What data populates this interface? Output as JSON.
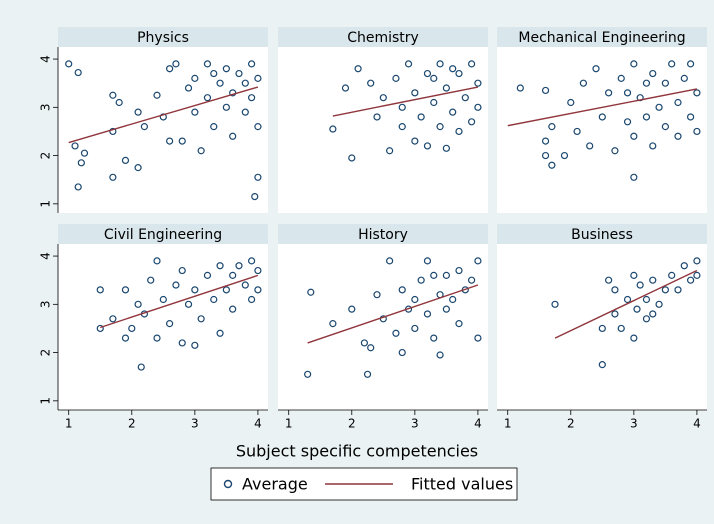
{
  "chart_data": {
    "type": "scatter",
    "xlabel": "Subject specific competencies",
    "xlim": [
      0.83,
      4.16
    ],
    "ylim": [
      0.81,
      4.25
    ],
    "xticks": [
      1,
      2,
      3,
      4
    ],
    "yticks": [
      1,
      2,
      3,
      4
    ],
    "series": [
      {
        "name": "Average",
        "color": "#1a476f"
      },
      {
        "name": "Fitted values",
        "color": "#90353b"
      }
    ],
    "panels": [
      {
        "title": "Physics",
        "series": [
          {
            "x": [
              1,
              1.15,
              1.1,
              1.25,
              1.2,
              1.15,
              1.7,
              1.8,
              1.7,
              1.7,
              1.9,
              2.1,
              2.1,
              2.2,
              2.4,
              2.5,
              2.6,
              2.7,
              2.8,
              2.9,
              3,
              3,
              3.1,
              3.2,
              3.2,
              3.3,
              3.4,
              3.5,
              3.5,
              3.6,
              3.6,
              3.7,
              3.8,
              3.8,
              3.9,
              3.9,
              4,
              4,
              3.95,
              4,
              2.6,
              3.3
            ],
            "y": [
              3.9,
              3.72,
              2.2,
              2.05,
              1.85,
              1.35,
              3.25,
              3.1,
              2.5,
              1.55,
              1.9,
              1.75,
              2.9,
              2.6,
              3.25,
              2.8,
              3.8,
              3.9,
              2.3,
              3.4,
              2.9,
              3.6,
              2.1,
              3.2,
              3.9,
              2.6,
              3.5,
              3.0,
              3.8,
              2.4,
              3.3,
              3.7,
              2.9,
              3.5,
              3.9,
              3.2,
              3.6,
              1.55,
              1.15,
              2.6,
              2.3,
              3.7
            ]
          },
          {
            "x": [
              1,
              4
            ],
            "y": [
              2.27,
              3.42
            ]
          }
        ]
      },
      {
        "title": "Chemistry",
        "series": [
          {
            "x": [
              1.7,
              2,
              1.9,
              2.1,
              2.3,
              2.4,
              2.5,
              2.6,
              2.7,
              2.8,
              2.9,
              3,
              3,
              3.1,
              3.2,
              3.2,
              3.3,
              3.4,
              3.4,
              3.5,
              3.5,
              3.6,
              3.7,
              3.7,
              3.8,
              3.9,
              3.9,
              4,
              4,
              3.3,
              2.8,
              3.6
            ],
            "y": [
              2.55,
              1.95,
              3.4,
              3.8,
              3.5,
              2.8,
              3.2,
              2.1,
              3.6,
              2.6,
              3.9,
              2.3,
              3.3,
              2.8,
              3.7,
              2.2,
              3.1,
              2.6,
              3.9,
              2.15,
              3.4,
              2.9,
              3.7,
              2.5,
              3.2,
              3.9,
              2.7,
              3.5,
              3.0,
              3.6,
              3.0,
              3.8
            ]
          },
          {
            "x": [
              1.7,
              4
            ],
            "y": [
              2.82,
              3.42
            ]
          }
        ]
      },
      {
        "title": "Mechanical Engineering",
        "series": [
          {
            "x": [
              1.2,
              1.6,
              1.6,
              1.6,
              1.7,
              1.7,
              1.9,
              2,
              2.1,
              2.2,
              2.3,
              2.4,
              2.5,
              2.6,
              2.7,
              2.8,
              2.9,
              3,
              3,
              3,
              3.1,
              3.2,
              3.3,
              3.3,
              3.4,
              3.5,
              3.5,
              3.6,
              3.7,
              3.7,
              3.8,
              3.9,
              3.9,
              4,
              4,
              3.2,
              2.9
            ],
            "y": [
              3.4,
              3.35,
              2.3,
              2.0,
              1.8,
              2.6,
              2.0,
              3.1,
              2.5,
              3.5,
              2.2,
              3.8,
              2.8,
              3.3,
              2.1,
              3.6,
              2.7,
              3.9,
              1.55,
              2.4,
              3.2,
              2.8,
              3.7,
              2.2,
              3.0,
              3.5,
              2.6,
              3.9,
              3.1,
              2.4,
              3.6,
              2.8,
              3.9,
              3.3,
              2.5,
              3.5,
              3.3
            ]
          },
          {
            "x": [
              1,
              4
            ],
            "y": [
              2.62,
              3.38
            ]
          }
        ]
      },
      {
        "title": "Civil Engineering",
        "series": [
          {
            "x": [
              1.5,
              1.5,
              1.7,
              1.9,
              1.9,
              2,
              2.1,
              2.15,
              2.2,
              2.3,
              2.4,
              2.5,
              2.6,
              2.7,
              2.8,
              2.8,
              2.9,
              3,
              3,
              3.1,
              3.2,
              3.3,
              3.4,
              3.4,
              3.5,
              3.6,
              3.6,
              3.7,
              3.8,
              3.9,
              3.9,
              4,
              4,
              2.4
            ],
            "y": [
              3.3,
              2.5,
              2.7,
              2.3,
              3.3,
              2.5,
              3.0,
              1.7,
              2.8,
              3.5,
              2.3,
              3.1,
              2.6,
              3.4,
              2.2,
              3.7,
              3.0,
              2.15,
              3.3,
              2.7,
              3.6,
              3.1,
              2.4,
              3.8,
              3.3,
              3.6,
              2.9,
              3.8,
              3.4,
              3.9,
              3.1,
              3.7,
              3.3,
              3.9
            ]
          },
          {
            "x": [
              1.5,
              4
            ],
            "y": [
              2.52,
              3.6
            ]
          }
        ]
      },
      {
        "title": "History",
        "series": [
          {
            "x": [
              1.3,
              1.35,
              1.7,
              2,
              2.2,
              2.25,
              2.3,
              2.4,
              2.5,
              2.6,
              2.7,
              2.8,
              2.8,
              2.9,
              3,
              3,
              3.1,
              3.2,
              3.2,
              3.3,
              3.4,
              3.4,
              3.5,
              3.5,
              3.6,
              3.7,
              3.7,
              3.8,
              3.9,
              4,
              4,
              3.3
            ],
            "y": [
              1.55,
              3.25,
              2.6,
              2.9,
              2.2,
              1.55,
              2.1,
              3.2,
              2.7,
              3.9,
              2.4,
              2.0,
              3.3,
              2.9,
              3.1,
              2.5,
              3.5,
              2.8,
              3.9,
              2.3,
              3.2,
              1.95,
              2.9,
              3.6,
              3.1,
              2.6,
              3.7,
              3.3,
              3.5,
              2.3,
              3.9,
              3.6
            ]
          },
          {
            "x": [
              1.3,
              4
            ],
            "y": [
              2.2,
              3.4
            ]
          }
        ]
      },
      {
        "title": "Business",
        "series": [
          {
            "x": [
              1.75,
              2.5,
              2.5,
              2.6,
              2.7,
              2.7,
              2.8,
              2.9,
              3,
              3,
              3.05,
              3.1,
              3.2,
              3.2,
              3.3,
              3.4,
              3.5,
              3.6,
              3.7,
              3.8,
              3.9,
              4,
              4,
              3.3
            ],
            "y": [
              3.0,
              1.75,
              2.5,
              3.5,
              2.8,
              3.3,
              2.5,
              3.1,
              2.3,
              3.6,
              2.9,
              3.4,
              2.7,
              3.1,
              3.5,
              3.0,
              3.3,
              3.6,
              3.3,
              3.8,
              3.5,
              3.9,
              3.6,
              2.8
            ]
          },
          {
            "x": [
              1.75,
              4
            ],
            "y": [
              2.3,
              3.7
            ]
          }
        ]
      }
    ]
  }
}
